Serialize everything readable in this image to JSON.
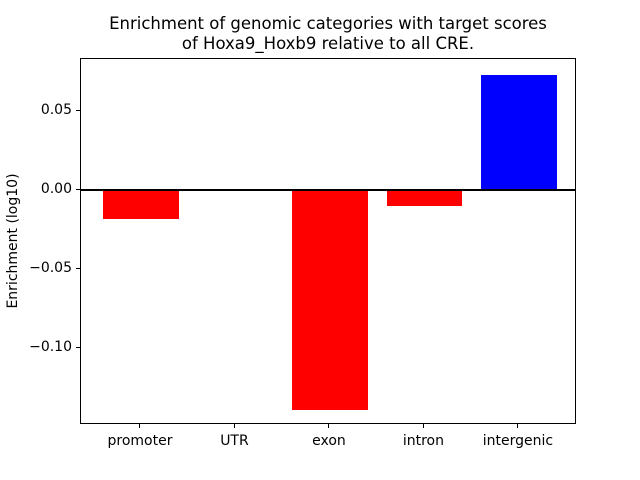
{
  "chart_data": {
    "type": "bar",
    "title": "Enrichment of genomic categories with target scores\nof Hoxa9_Hoxb9 relative to all CRE.",
    "ylabel": "Enrichment (log10)",
    "xlabel": "",
    "categories": [
      "promoter",
      "UTR",
      "exon",
      "intron",
      "intergenic"
    ],
    "values": [
      -0.018,
      0.0,
      -0.139,
      -0.01,
      0.073
    ],
    "bar_colors": [
      "#ff0000",
      "#ff0000",
      "#ff0000",
      "#ff0000",
      "#0000ff"
    ],
    "bar_width": 0.8,
    "ylim": [
      -0.1487,
      0.0832
    ],
    "xlim": [
      -0.635,
      4.615
    ],
    "yticks": [
      {
        "value": 0.05,
        "label": "0.05"
      },
      {
        "value": 0.0,
        "label": "0.00"
      },
      {
        "value": -0.05,
        "label": "−0.05"
      },
      {
        "value": -0.1,
        "label": "−0.10"
      }
    ],
    "grid": false,
    "legend_position": "none",
    "zero_line": true,
    "colors": {
      "negative_bar": "#ff0000",
      "positive_bar": "#0000ff",
      "axis": "#000000",
      "background": "#ffffff"
    }
  }
}
